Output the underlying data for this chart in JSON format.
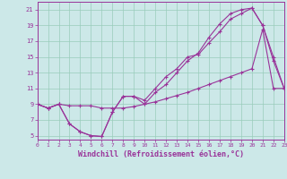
{
  "xlabel": "Windchill (Refroidissement éolien,°C)",
  "bg_color": "#cce8e8",
  "grid_color": "#99ccbb",
  "line_color": "#993399",
  "xlim": [
    0,
    23
  ],
  "ylim": [
    4.5,
    22
  ],
  "xticks": [
    0,
    1,
    2,
    3,
    4,
    5,
    6,
    7,
    8,
    9,
    10,
    11,
    12,
    13,
    14,
    15,
    16,
    17,
    18,
    19,
    20,
    21,
    22,
    23
  ],
  "yticks": [
    5,
    7,
    9,
    11,
    13,
    15,
    17,
    19,
    21
  ],
  "line1_x": [
    0,
    1,
    2,
    3,
    4,
    5,
    6,
    7,
    8,
    9,
    10,
    11,
    12,
    13,
    14,
    15,
    16,
    17,
    18,
    19,
    20,
    21,
    22,
    23
  ],
  "line1_y": [
    9,
    8.5,
    9,
    6.5,
    5.5,
    5,
    4.9,
    8,
    10,
    10,
    9,
    10.5,
    11.5,
    13,
    14.5,
    15.5,
    17.5,
    19.2,
    20.5,
    21.0,
    21.2,
    19,
    14.5,
    11
  ],
  "line2_x": [
    0,
    1,
    2,
    3,
    4,
    5,
    6,
    7,
    8,
    9,
    10,
    11,
    12,
    13,
    14,
    15,
    16,
    17,
    18,
    19,
    20,
    21,
    22,
    23
  ],
  "line2_y": [
    9,
    8.5,
    9,
    6.5,
    5.5,
    5,
    4.9,
    8,
    10,
    10,
    9.5,
    11,
    12.5,
    13.5,
    15,
    15.3,
    16.8,
    18.2,
    19.8,
    20.5,
    21.2,
    19,
    15,
    11
  ],
  "line3_x": [
    0,
    1,
    2,
    3,
    4,
    5,
    6,
    7,
    8,
    9,
    10,
    11,
    12,
    13,
    14,
    15,
    16,
    17,
    18,
    19,
    20,
    21,
    22,
    23
  ],
  "line3_y": [
    9,
    8.5,
    9,
    8.8,
    8.8,
    8.8,
    8.5,
    8.5,
    8.5,
    8.7,
    9,
    9.3,
    9.7,
    10.1,
    10.5,
    11.0,
    11.5,
    12.0,
    12.5,
    13.0,
    13.5,
    18.5,
    11,
    11
  ]
}
